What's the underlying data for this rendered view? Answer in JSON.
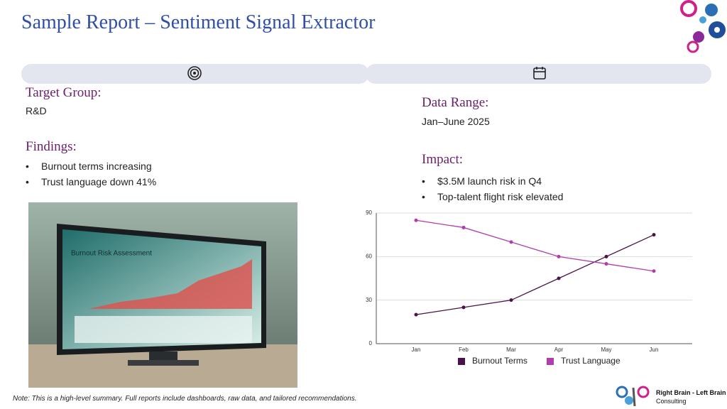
{
  "header": {
    "title": "Sample Report – Sentiment Signal Extractor"
  },
  "left": {
    "target_label": "Target Group:",
    "target_value": "R&D",
    "findings_label": "Findings:",
    "findings": [
      "Burnout terms increasing",
      "Trust language down 41%"
    ]
  },
  "right": {
    "range_label": "Data Range:",
    "range_value": "Jan–June 2025",
    "impact_label": "Impact:",
    "impact": [
      "$3.5M launch risk in Q4",
      "Top-talent flight risk elevated"
    ]
  },
  "image": {
    "title": "Burnout Risk Assessment"
  },
  "chart_data": {
    "type": "line",
    "categories": [
      "Jan",
      "Feb",
      "Mar",
      "Apr",
      "May",
      "Jun"
    ],
    "series": [
      {
        "name": "Burnout Terms",
        "color": "#4a1248",
        "values": [
          20,
          25,
          30,
          45,
          60,
          75
        ]
      },
      {
        "name": "Trust Language",
        "color": "#b03cb0",
        "values": [
          85,
          80,
          70,
          60,
          55,
          50
        ]
      }
    ],
    "ylim": [
      0,
      90
    ],
    "yticks": [
      0,
      30,
      60,
      90
    ],
    "grid": true
  },
  "footer": {
    "note": "Note: This is a high-level summary. Full reports include dashboards, raw data, and tailored recommendations.",
    "brand": "Right Brain - Left Brain",
    "brand_sub": "Consulting"
  }
}
